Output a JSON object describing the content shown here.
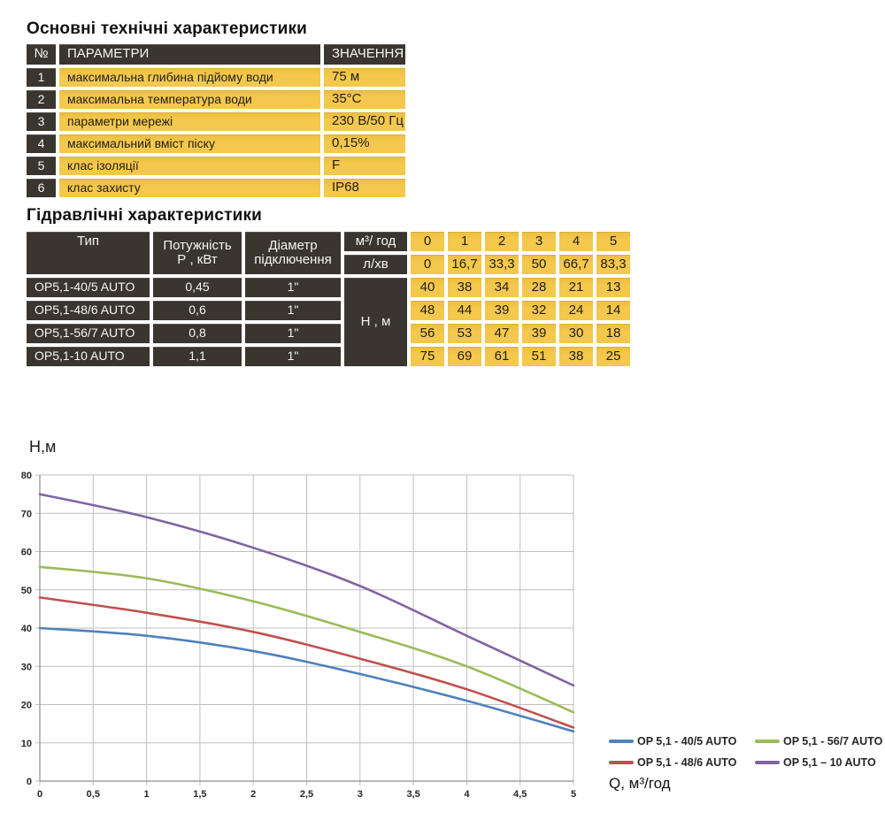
{
  "colors": {
    "dark_cell": "#3A352F",
    "yellow_cell": "#F2C74B",
    "grid_line": "#BFBFBF",
    "axis_line": "#8C8C8C",
    "title_text": "#111111"
  },
  "section1": {
    "title": "Основні технічні характеристики",
    "table": {
      "headers": {
        "num": "№",
        "param": "ПАРАМЕТРИ",
        "value": "ЗНАЧЕННЯ"
      },
      "rows": [
        {
          "num": "1",
          "param": "максимальна глибина підйому води",
          "value": "75 м"
        },
        {
          "num": "2",
          "param": "максимальна температура води",
          "value": "35°С"
        },
        {
          "num": "3",
          "param": "параметри мережі",
          "value": "230 В/50 Гц"
        },
        {
          "num": "4",
          "param": "максимальний вміст піску",
          "value": "0,15%"
        },
        {
          "num": "5",
          "param": "клас ізоляції",
          "value": "F"
        },
        {
          "num": "6",
          "param": "клас захисту",
          "value": "IP68"
        }
      ]
    }
  },
  "section2": {
    "title": "Гідравлічні характеристики",
    "table": {
      "col_type": "Тип",
      "col_power_l1": "Потужність",
      "col_power_l2": "Р , кВт",
      "col_diameter_l1": "Діаметр",
      "col_diameter_l2": "підключення",
      "row_m3": "м³/ год",
      "row_lmin": "л/хв",
      "h_label": "Н , м",
      "flow_m3": [
        "0",
        "1",
        "2",
        "3",
        "4",
        "5"
      ],
      "flow_lmin": [
        "0",
        "16,7",
        "33,3",
        "50",
        "66,7",
        "83,3"
      ],
      "pumps": [
        {
          "type": "OP5,1-40/5 AUTO",
          "power": "0,45",
          "diameter": "1\"",
          "heads": [
            "40",
            "38",
            "34",
            "28",
            "21",
            "13"
          ]
        },
        {
          "type": "OP5,1-48/6 AUTO",
          "power": "0,6",
          "diameter": "1\"",
          "heads": [
            "48",
            "44",
            "39",
            "32",
            "24",
            "14"
          ]
        },
        {
          "type": "OP5,1-56/7 AUTO",
          "power": "0,8",
          "diameter": "1\"",
          "heads": [
            "56",
            "53",
            "47",
            "39",
            "30",
            "18"
          ]
        },
        {
          "type": "OP5,1-10 AUTO",
          "power": "1,1",
          "diameter": "1\"",
          "heads": [
            "75",
            "69",
            "61",
            "51",
            "38",
            "25"
          ]
        }
      ]
    }
  },
  "chart_data": {
    "type": "line",
    "title": "",
    "ylabel": "Н,м",
    "xlabel": "Q,  м³/год",
    "x": [
      0,
      1,
      2,
      3,
      4,
      5
    ],
    "series": [
      {
        "name": "OP 5,1 - 40/5 AUTO",
        "color": "#4F81BD",
        "values": [
          40,
          38,
          34,
          28,
          21,
          13
        ]
      },
      {
        "name": "OP 5,1 - 48/6 AUTO",
        "color": "#C0504D",
        "values": [
          48,
          44,
          39,
          32,
          24,
          14
        ]
      },
      {
        "name": "OP 5,1 - 56/7 AUTO",
        "color": "#9BBB59",
        "values": [
          56,
          53,
          47,
          39,
          30,
          18
        ]
      },
      {
        "name": "OP 5,1 – 10 AUTO",
        "color": "#8064A2",
        "values": [
          75,
          69,
          61,
          51,
          38,
          25
        ]
      }
    ],
    "xlim": [
      0,
      5
    ],
    "ylim": [
      0,
      80
    ],
    "xticks": [
      "0",
      "0,5",
      "1",
      "1,5",
      "2",
      "2,5",
      "3",
      "3,5",
      "4",
      "4,5",
      "5"
    ],
    "yticks": [
      0,
      10,
      20,
      30,
      40,
      50,
      60,
      70,
      80
    ],
    "grid": true,
    "legend_position": "bottom-right"
  }
}
